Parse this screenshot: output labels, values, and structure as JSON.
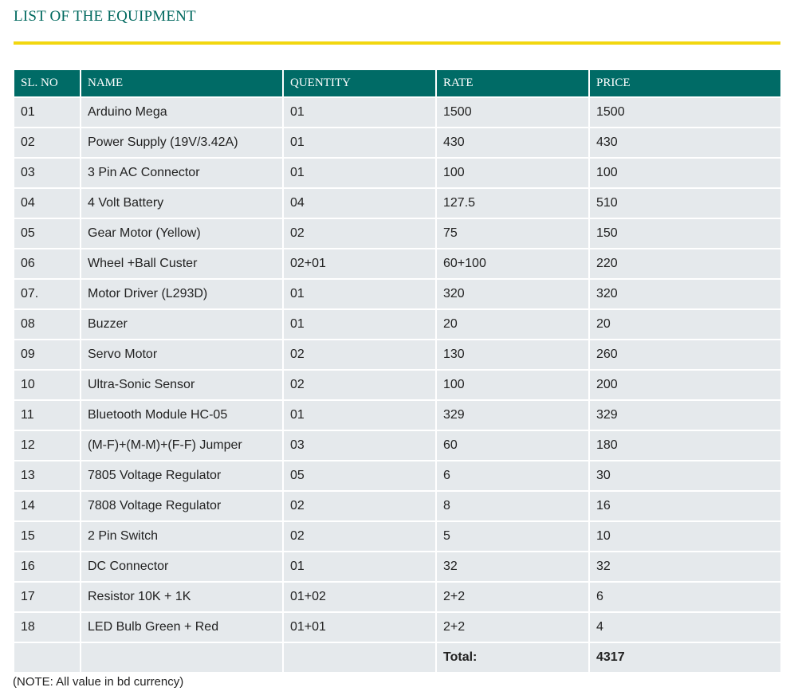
{
  "heading": "LIST OF THE EQUIPMENT",
  "accent_colors": {
    "heading_text": "#00695f",
    "rule": "#f2d70f",
    "header_bg": "#006b66",
    "cell_bg": "#e5e9ec"
  },
  "table": {
    "headers": [
      "SL. NO",
      "NAME",
      "QUENTITY",
      "RATE",
      "PRICE"
    ],
    "rows": [
      [
        "01",
        "Arduino Mega",
        "01",
        "1500",
        "1500"
      ],
      [
        "02",
        "Power Supply (19V/3.42A)",
        "01",
        "430",
        "430"
      ],
      [
        "03",
        "3 Pin AC Connector",
        "01",
        "100",
        "100"
      ],
      [
        "04",
        "4 Volt Battery",
        "04",
        "127.5",
        "510"
      ],
      [
        "05",
        "Gear Motor (Yellow)",
        "02",
        "75",
        "150"
      ],
      [
        "06",
        "Wheel +Ball Custer",
        "02+01",
        "60+100",
        "220"
      ],
      [
        "07.",
        "Motor Driver (L293D)",
        "01",
        "320",
        "320"
      ],
      [
        "08",
        "Buzzer",
        "01",
        "20",
        "20"
      ],
      [
        "09",
        "Servo Motor",
        "02",
        "130",
        "260"
      ],
      [
        "10",
        "Ultra-Sonic Sensor",
        "02",
        "100",
        "200"
      ],
      [
        "11",
        "Bluetooth Module HC-05",
        "01",
        "329",
        "329"
      ],
      [
        "12",
        "(M-F)+(M-M)+(F-F) Jumper",
        "03",
        "60",
        "180"
      ],
      [
        "13",
        "7805 Voltage Regulator",
        "05",
        "6",
        "30"
      ],
      [
        "14",
        "7808 Voltage Regulator",
        "02",
        "8",
        "16"
      ],
      [
        "15",
        "2 Pin Switch",
        "02",
        "5",
        "10"
      ],
      [
        "16",
        "DC Connector",
        "01",
        "32",
        "32"
      ],
      [
        "17",
        "Resistor 10K + 1K",
        "01+02",
        "2+2",
        "6"
      ],
      [
        "18",
        "LED Bulb Green + Red",
        "01+01",
        "2+2",
        "4"
      ]
    ],
    "total_label": "Total:",
    "total_value": "4317"
  },
  "note": "(NOTE: All value in bd currency)"
}
